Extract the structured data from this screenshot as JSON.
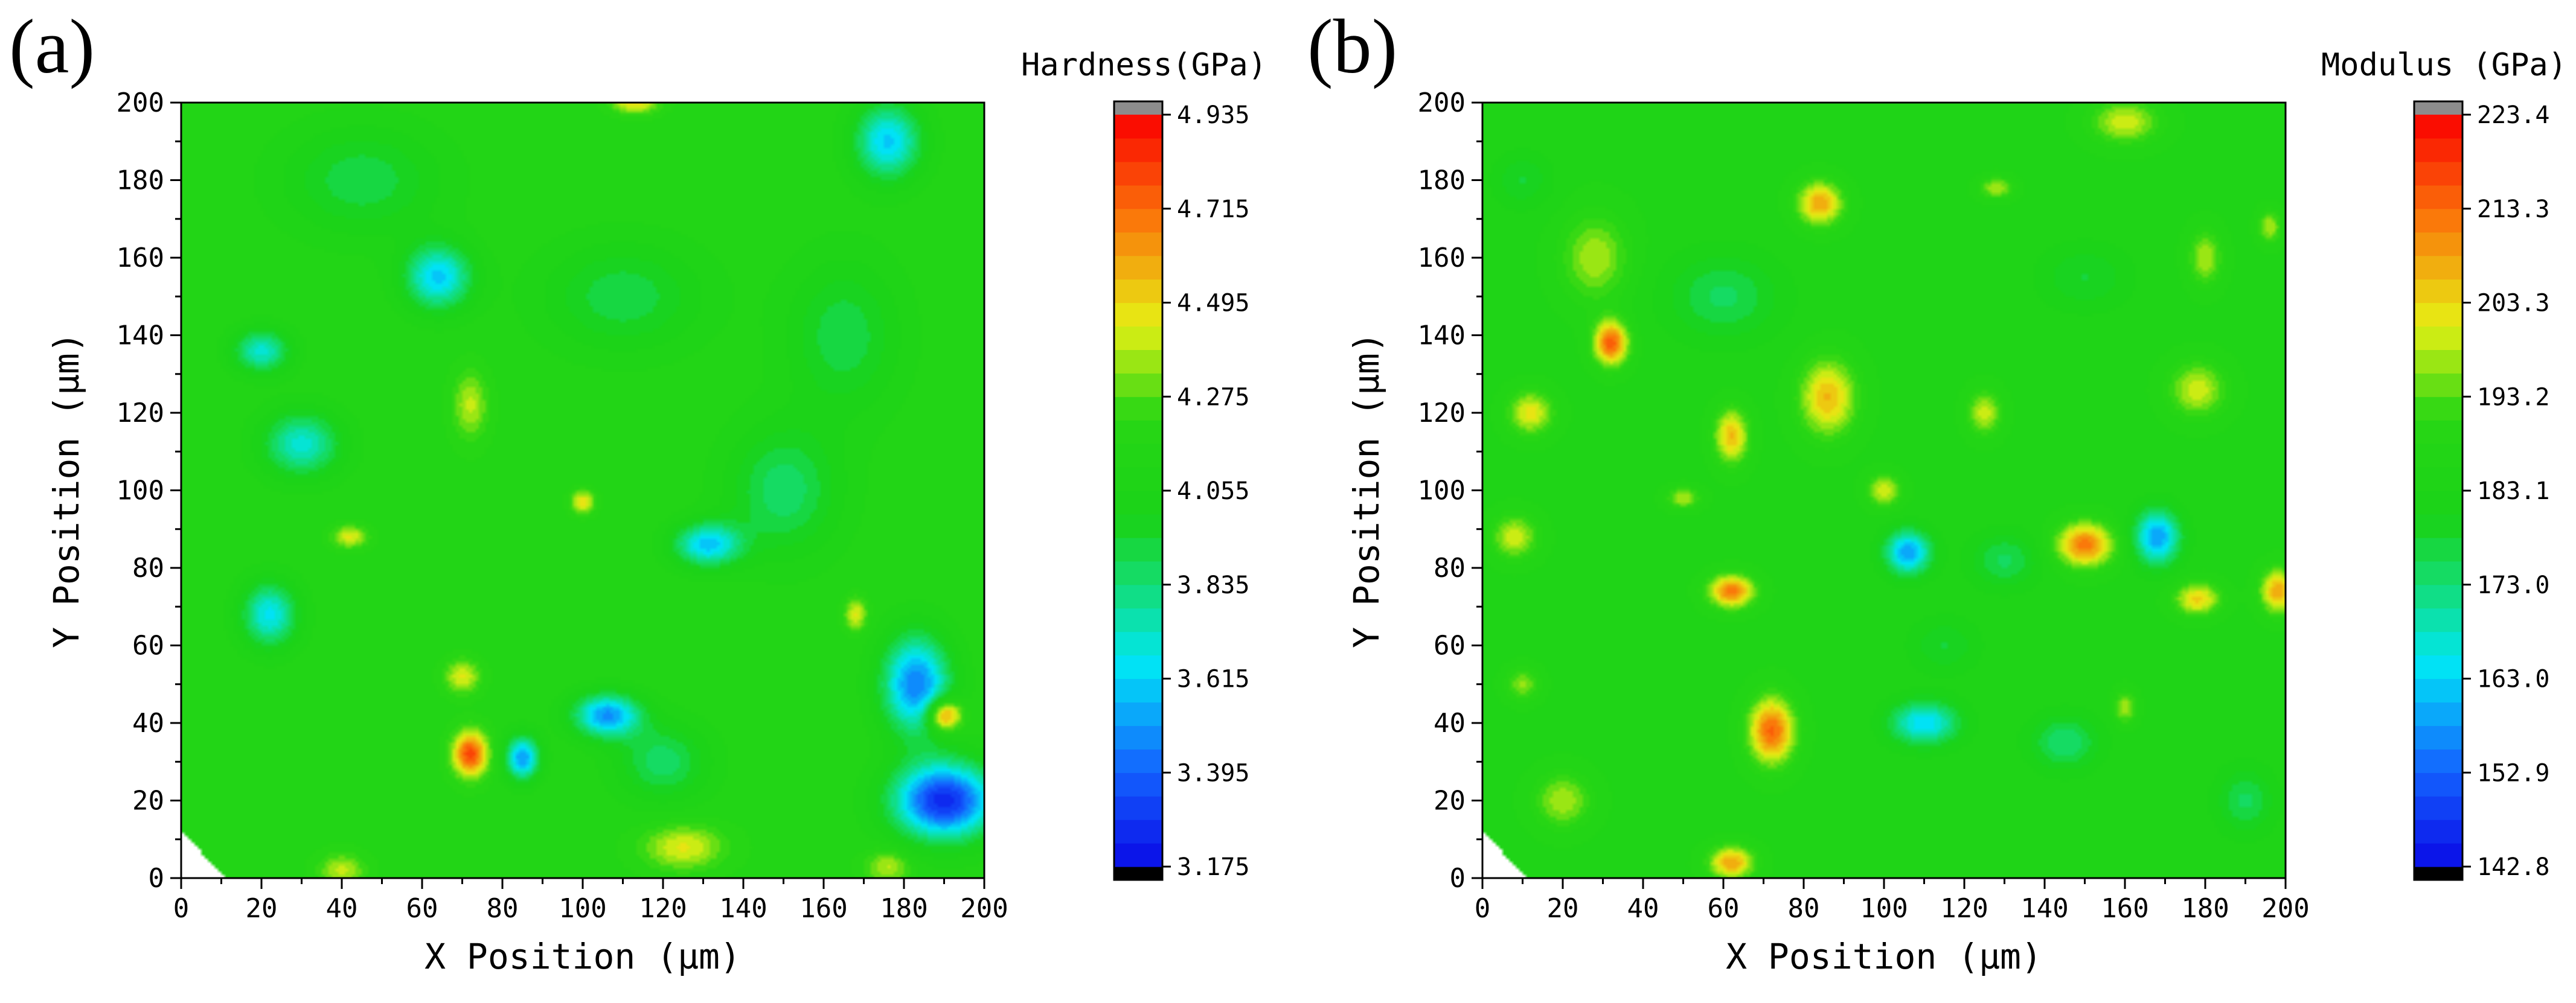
{
  "chart_data": [
    {
      "panel_label": "(a)",
      "type": "contour",
      "quantity": "Hardness",
      "xlabel": "X Position (μm)",
      "ylabel": "Y Position (μm)",
      "xlim": [
        0,
        200
      ],
      "ylim": [
        0,
        200
      ],
      "x_ticks": [
        "0",
        "20",
        "40",
        "60",
        "80",
        "100",
        "120",
        "140",
        "160",
        "180",
        "200"
      ],
      "y_ticks": [
        "0",
        "20",
        "40",
        "60",
        "80",
        "100",
        "120",
        "140",
        "160",
        "180",
        "200"
      ],
      "colorbar": {
        "title": "Hardness(GPa)",
        "min": 3.175,
        "max": 4.935,
        "ticks": [
          "4.935",
          "4.715",
          "4.495",
          "4.275",
          "4.055",
          "3.835",
          "3.615",
          "3.395",
          "3.175"
        ]
      },
      "background_value": 4.15,
      "features": [
        {
          "x": 190,
          "y": 20,
          "value": 3.25,
          "sx": 9,
          "sy": 7
        },
        {
          "x": 183,
          "y": 50,
          "value": 3.45,
          "sx": 6,
          "sy": 9
        },
        {
          "x": 106,
          "y": 42,
          "value": 3.5,
          "sx": 6,
          "sy": 4
        },
        {
          "x": 85,
          "y": 31,
          "value": 3.5,
          "sx": 3,
          "sy": 4
        },
        {
          "x": 131,
          "y": 86,
          "value": 3.6,
          "sx": 6,
          "sy": 4
        },
        {
          "x": 22,
          "y": 68,
          "value": 3.65,
          "sx": 5,
          "sy": 6
        },
        {
          "x": 30,
          "y": 112,
          "value": 3.7,
          "sx": 7,
          "sy": 6
        },
        {
          "x": 20,
          "y": 136,
          "value": 3.7,
          "sx": 5,
          "sy": 4
        },
        {
          "x": 64,
          "y": 155,
          "value": 3.6,
          "sx": 6,
          "sy": 6
        },
        {
          "x": 176,
          "y": 190,
          "value": 3.6,
          "sx": 6,
          "sy": 7
        },
        {
          "x": 120,
          "y": 30,
          "value": 3.85,
          "sx": 8,
          "sy": 7
        },
        {
          "x": 150,
          "y": 100,
          "value": 3.85,
          "sx": 10,
          "sy": 12
        },
        {
          "x": 165,
          "y": 140,
          "value": 3.9,
          "sx": 10,
          "sy": 14
        },
        {
          "x": 110,
          "y": 150,
          "value": 3.9,
          "sx": 14,
          "sy": 10
        },
        {
          "x": 45,
          "y": 180,
          "value": 3.9,
          "sx": 14,
          "sy": 10
        },
        {
          "x": 72,
          "y": 32,
          "value": 4.8,
          "sx": 3,
          "sy": 4
        },
        {
          "x": 190,
          "y": 42,
          "value": 4.78,
          "sx": 3,
          "sy": 3
        },
        {
          "x": 125,
          "y": 8,
          "value": 4.45,
          "sx": 7,
          "sy": 4
        },
        {
          "x": 40,
          "y": 2,
          "value": 4.4,
          "sx": 4,
          "sy": 3
        },
        {
          "x": 176,
          "y": 3,
          "value": 4.4,
          "sx": 4,
          "sy": 3
        },
        {
          "x": 100,
          "y": 97,
          "value": 4.5,
          "sx": 2,
          "sy": 2
        },
        {
          "x": 168,
          "y": 68,
          "value": 4.45,
          "sx": 2,
          "sy": 3
        },
        {
          "x": 42,
          "y": 88,
          "value": 4.45,
          "sx": 3,
          "sy": 2
        },
        {
          "x": 72,
          "y": 122,
          "value": 4.4,
          "sx": 3,
          "sy": 6
        },
        {
          "x": 113,
          "y": 200,
          "value": 4.5,
          "sx": 4,
          "sy": 2
        },
        {
          "x": 70,
          "y": 52,
          "value": 4.45,
          "sx": 3,
          "sy": 3
        }
      ]
    },
    {
      "panel_label": "(b)",
      "type": "contour",
      "quantity": "Modulus",
      "xlabel": "X Position (μm)",
      "ylabel": "Y Position (μm)",
      "xlim": [
        0,
        200
      ],
      "ylim": [
        0,
        200
      ],
      "x_ticks": [
        "0",
        "20",
        "40",
        "60",
        "80",
        "100",
        "120",
        "140",
        "160",
        "180",
        "200"
      ],
      "y_ticks": [
        "0",
        "20",
        "40",
        "60",
        "80",
        "100",
        "120",
        "140",
        "160",
        "180",
        "200"
      ],
      "colorbar": {
        "title": "Modulus (GPa)",
        "min": 142.8,
        "max": 223.4,
        "ticks": [
          "223.4",
          "213.3",
          "203.3",
          "193.2",
          "183.1",
          "173.0",
          "163.0",
          "152.9",
          "142.8"
        ]
      },
      "background_value": 185,
      "features": [
        {
          "x": 106,
          "y": 84,
          "value": 158,
          "sx": 4,
          "sy": 4
        },
        {
          "x": 168,
          "y": 88,
          "value": 158,
          "sx": 4,
          "sy": 5
        },
        {
          "x": 110,
          "y": 40,
          "value": 163,
          "sx": 6,
          "sy": 4
        },
        {
          "x": 145,
          "y": 35,
          "value": 173,
          "sx": 6,
          "sy": 5
        },
        {
          "x": 60,
          "y": 150,
          "value": 175,
          "sx": 10,
          "sy": 8
        },
        {
          "x": 130,
          "y": 82,
          "value": 175,
          "sx": 6,
          "sy": 5
        },
        {
          "x": 190,
          "y": 20,
          "value": 175,
          "sx": 5,
          "sy": 6
        },
        {
          "x": 32,
          "y": 138,
          "value": 215,
          "sx": 3,
          "sy": 4
        },
        {
          "x": 72,
          "y": 38,
          "value": 214,
          "sx": 4,
          "sy": 6
        },
        {
          "x": 62,
          "y": 74,
          "value": 212,
          "sx": 4,
          "sy": 3
        },
        {
          "x": 150,
          "y": 86,
          "value": 212,
          "sx": 5,
          "sy": 4
        },
        {
          "x": 198,
          "y": 74,
          "value": 208,
          "sx": 3,
          "sy": 4
        },
        {
          "x": 84,
          "y": 174,
          "value": 208,
          "sx": 4,
          "sy": 4
        },
        {
          "x": 86,
          "y": 124,
          "value": 206,
          "sx": 5,
          "sy": 7
        },
        {
          "x": 62,
          "y": 114,
          "value": 206,
          "sx": 3,
          "sy": 5
        },
        {
          "x": 178,
          "y": 72,
          "value": 204,
          "sx": 4,
          "sy": 3
        },
        {
          "x": 12,
          "y": 120,
          "value": 202,
          "sx": 4,
          "sy": 4
        },
        {
          "x": 8,
          "y": 88,
          "value": 200,
          "sx": 4,
          "sy": 4
        },
        {
          "x": 178,
          "y": 126,
          "value": 200,
          "sx": 5,
          "sy": 5
        },
        {
          "x": 28,
          "y": 160,
          "value": 198,
          "sx": 6,
          "sy": 8
        },
        {
          "x": 125,
          "y": 120,
          "value": 200,
          "sx": 3,
          "sy": 4
        },
        {
          "x": 100,
          "y": 100,
          "value": 200,
          "sx": 3,
          "sy": 3
        },
        {
          "x": 62,
          "y": 4,
          "value": 208,
          "sx": 4,
          "sy": 3
        },
        {
          "x": 160,
          "y": 195,
          "value": 200,
          "sx": 6,
          "sy": 4
        },
        {
          "x": 180,
          "y": 160,
          "value": 198,
          "sx": 3,
          "sy": 5
        },
        {
          "x": 20,
          "y": 20,
          "value": 198,
          "sx": 5,
          "sy": 5
        },
        {
          "x": 10,
          "y": 50,
          "value": 196,
          "sx": 3,
          "sy": 3
        },
        {
          "x": 160,
          "y": 44,
          "value": 198,
          "sx": 2,
          "sy": 3
        },
        {
          "x": 50,
          "y": 98,
          "value": 198,
          "sx": 3,
          "sy": 2
        },
        {
          "x": 196,
          "y": 168,
          "value": 198,
          "sx": 2,
          "sy": 3
        },
        {
          "x": 128,
          "y": 178,
          "value": 198,
          "sx": 3,
          "sy": 2
        },
        {
          "x": 150,
          "y": 155,
          "value": 178,
          "sx": 8,
          "sy": 6
        },
        {
          "x": 115,
          "y": 60,
          "value": 178,
          "sx": 6,
          "sy": 5
        },
        {
          "x": 10,
          "y": 180,
          "value": 178,
          "sx": 5,
          "sy": 5
        }
      ]
    }
  ]
}
